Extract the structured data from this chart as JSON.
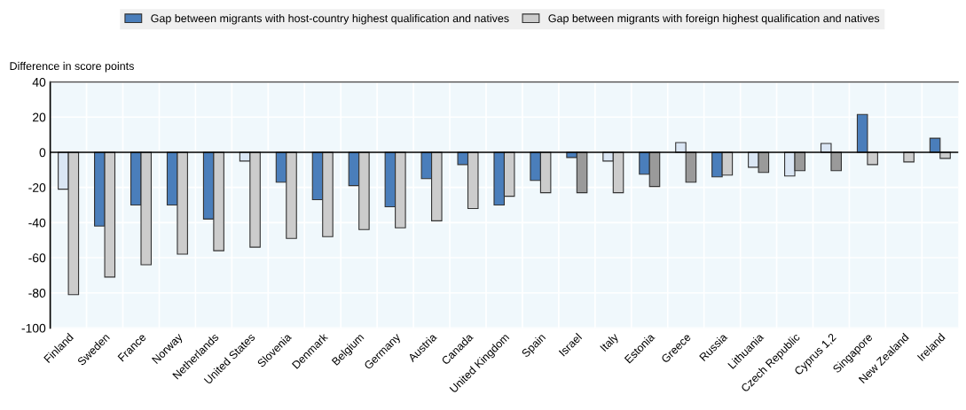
{
  "chart_data": {
    "type": "bar",
    "ylabel": "Difference in score points",
    "categories": [
      "Finland",
      "Sweden",
      "France",
      "Norway",
      "Netherlands",
      "United States",
      "Slovenia",
      "Denmark",
      "Belgium",
      "Germany",
      "Austria",
      "Canada",
      "United Kingdom",
      "Spain",
      "Israel",
      "Italy",
      "Estonia",
      "Greece",
      "Russia",
      "Lithuania",
      "Czech Republic",
      "Cyprus 1,2",
      "Singapore",
      "New Zealand",
      "Ireland"
    ],
    "series": [
      {
        "name": "Gap between migrants with host-country highest qualification and natives",
        "color": "#4a7ebb",
        "colors": [
          "#dae6f4",
          "#4a7ebb",
          "#4a7ebb",
          "#4a7ebb",
          "#4a7ebb",
          "#dae6f4",
          "#4a7ebb",
          "#4a7ebb",
          "#4a7ebb",
          "#4a7ebb",
          "#4a7ebb",
          "#4a7ebb",
          "#4a7ebb",
          "#4a7ebb",
          "#4a7ebb",
          "#dae6f4",
          "#4a7ebb",
          "#dae6f4",
          "#4a7ebb",
          "#dae6f4",
          "#dae6f4",
          "#dae6f4",
          "#4a7ebb",
          "#4a7ebb",
          "#4a7ebb"
        ],
        "values": [
          -21,
          -42,
          -30,
          -30,
          -38,
          -5,
          -17,
          -27,
          -19,
          -31,
          -15,
          -7,
          -30,
          -16,
          -3,
          -5,
          -12.5,
          5.5,
          -14,
          -8.5,
          -13.5,
          5,
          21.5,
          null,
          8
        ]
      },
      {
        "name": "Gap between migrants with foreign highest qualification and natives",
        "color": "#cccccc",
        "colors": [
          "#cccccc",
          "#cccccc",
          "#cccccc",
          "#cccccc",
          "#cccccc",
          "#cccccc",
          "#cccccc",
          "#cccccc",
          "#cccccc",
          "#cccccc",
          "#cccccc",
          "#cccccc",
          "#cccccc",
          "#cccccc",
          "#9a9a9a",
          "#cccccc",
          "#9a9a9a",
          "#9a9a9a",
          "#cccccc",
          "#9a9a9a",
          "#9a9a9a",
          "#9a9a9a",
          "#cccccc",
          "#cccccc",
          "#cccccc"
        ],
        "values": [
          -81,
          -71,
          -64,
          -58,
          -56,
          -54,
          -49,
          -48,
          -44,
          -43,
          -39,
          -32,
          -25,
          -23,
          -23,
          -23,
          -19.5,
          -17,
          -13,
          -11.5,
          -10.5,
          -10.5,
          -7,
          -5.5,
          -3.5
        ]
      }
    ],
    "ylim": [
      -100,
      40
    ],
    "yticks": [
      -100,
      -80,
      -60,
      -40,
      -20,
      0,
      20,
      40
    ],
    "grid": true,
    "legend": "top"
  }
}
